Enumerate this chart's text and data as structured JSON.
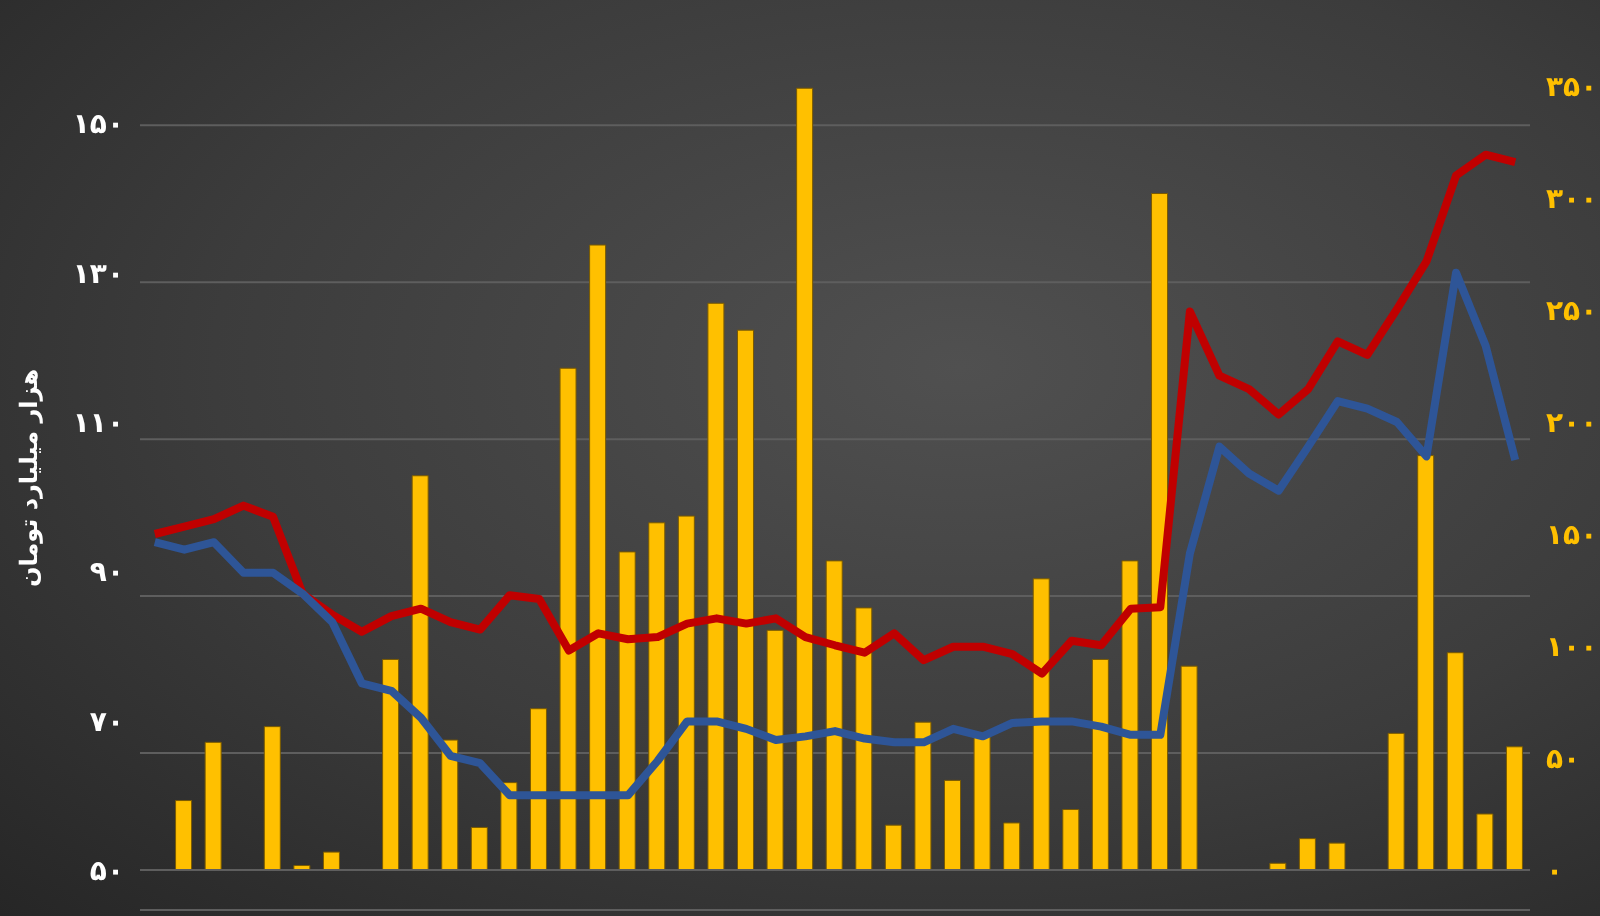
{
  "chart_data": {
    "type": "bar",
    "ylabel": "هزار میلیارد تومان",
    "categories": [
      null,
      null,
      null,
      null,
      null,
      null,
      null,
      null,
      null,
      null,
      null,
      null,
      null,
      null,
      null,
      null,
      null,
      null,
      null,
      null,
      null,
      null,
      null,
      null,
      null,
      null,
      null,
      null,
      null,
      null,
      null,
      null,
      null,
      null,
      null,
      null,
      null,
      null,
      null,
      null,
      null,
      null,
      null,
      null,
      null,
      null,
      null
    ],
    "series": [
      {
        "axis": "y2",
        "color": "#ffc000",
        "values": [
          null,
          31,
          57,
          null,
          64,
          2,
          8,
          null,
          94,
          176,
          58,
          19,
          39,
          72,
          224,
          279,
          142,
          155,
          158,
          253,
          241,
          107,
          349,
          138,
          117,
          20,
          66,
          40,
          60,
          21,
          130,
          27,
          94,
          138,
          302,
          91,
          null,
          null,
          3,
          14,
          12,
          null,
          61,
          185,
          97,
          25,
          55
        ]
      },
      {
        "type": "line",
        "axis": "y",
        "color": "#c00000",
        "values": [
          95.0,
          96.0,
          97.0,
          98.8,
          97.3,
          87.0,
          84.2,
          81.9,
          84.0,
          85.0,
          83.2,
          82.2,
          86.8,
          86.3,
          79.4,
          81.7,
          80.9,
          81.2,
          83.0,
          83.7,
          83.0,
          83.7,
          81.2,
          80.1,
          79.1,
          81.7,
          78.1,
          79.9,
          79.9,
          78.9,
          76.3,
          80.7,
          80.1,
          85.0,
          85.2,
          124.8,
          116.2,
          114.4,
          111.0,
          114.4,
          120.8,
          119.0,
          125.1,
          131.5,
          143.0,
          145.8,
          144.8
        ]
      },
      {
        "type": "line",
        "axis": "y",
        "color": "#2e5597",
        "values": [
          93.9,
          92.9,
          93.9,
          89.8,
          89.8,
          87.0,
          83.2,
          75.0,
          74.0,
          70.4,
          65.3,
          64.3,
          60.0,
          60.0,
          60.0,
          60.0,
          60.0,
          64.6,
          69.9,
          69.9,
          68.9,
          67.4,
          67.9,
          68.6,
          67.6,
          67.1,
          67.1,
          68.9,
          67.9,
          69.7,
          69.9,
          69.9,
          69.2,
          68.1,
          68.1,
          92.4,
          106.7,
          103.1,
          100.8,
          106.7,
          112.8,
          111.8,
          110.0,
          105.4,
          130.0,
          120.2,
          104.9
        ]
      }
    ],
    "ylim": [
      50,
      155
    ],
    "yticks": [
      {
        "value": 50,
        "label": "۵۰"
      },
      {
        "value": 70,
        "label": "۷۰"
      },
      {
        "value": 90,
        "label": "۹۰"
      },
      {
        "value": 110,
        "label": "۱۱۰"
      },
      {
        "value": 130,
        "label": "۱۳۰"
      },
      {
        "value": 150,
        "label": "۱۵۰"
      }
    ],
    "y2lim": [
      0,
      350
    ],
    "y2ticks": [
      {
        "value": 0,
        "label": "۰"
      },
      {
        "value": 50,
        "label": "۵۰"
      },
      {
        "value": 100,
        "label": "۱۰۰"
      },
      {
        "value": 150,
        "label": "۱۵۰"
      },
      {
        "value": 200,
        "label": "۲۰۰"
      },
      {
        "value": 250,
        "label": "۲۵۰"
      },
      {
        "value": 300,
        "label": "۳۰۰"
      },
      {
        "value": 350,
        "label": "۳۵۰"
      }
    ],
    "grid": "y",
    "legend": false,
    "marker": "none",
    "line_style": "solid"
  }
}
